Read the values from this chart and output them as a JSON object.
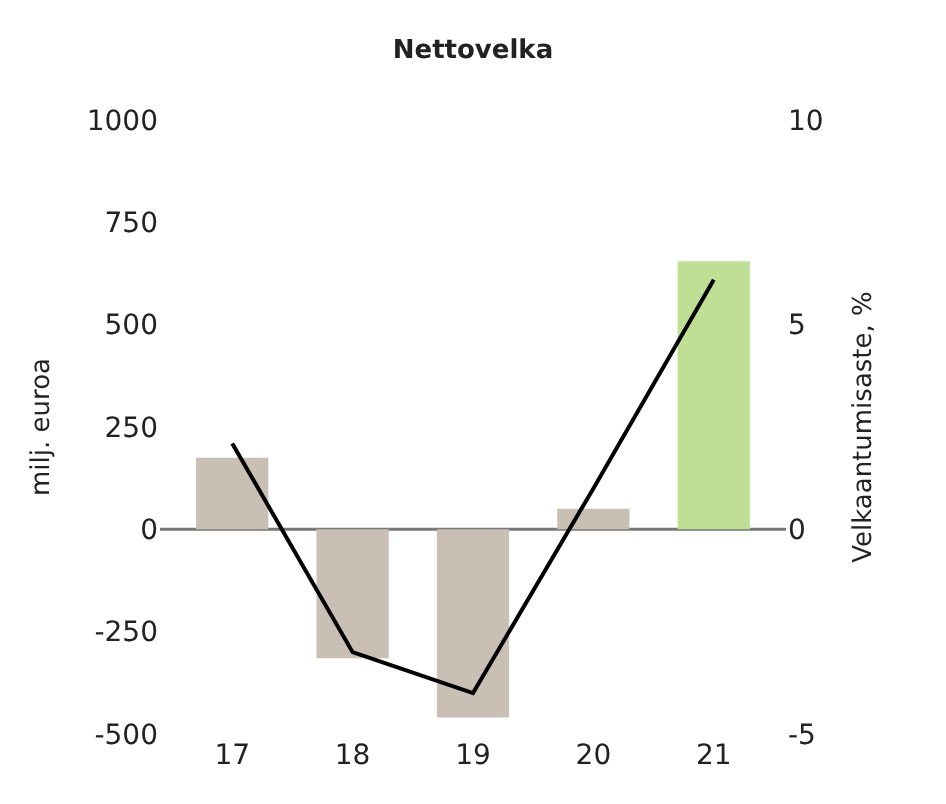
{
  "chart_data": {
    "type": "bar",
    "title": "Nettovelka",
    "ylabel": "milj. euroa",
    "y2label": "Velkaantumisaste, %",
    "categories": [
      "17",
      "18",
      "19",
      "20",
      "21"
    ],
    "series": [
      {
        "colors": [
          "#c9bfb5",
          "#c9bfb5",
          "#c9bfb5",
          "#c9bfb5",
          "#bedf94"
        ],
        "values": [
          175,
          -315,
          -460,
          50,
          655
        ]
      },
      {
        "type": "line",
        "axis": "y2",
        "color": "#000000",
        "values": [
          2.1,
          -3.0,
          -4.0,
          1.0,
          6.1
        ]
      }
    ],
    "ylim": [
      -500,
      1000
    ],
    "yticks": [
      -500,
      -250,
      0,
      250,
      500,
      750,
      1000
    ],
    "y2lim": [
      -5,
      10
    ],
    "y2ticks": [
      -5,
      0,
      5,
      10
    ],
    "ref_lines": [
      {
        "axis": "y",
        "value": 0,
        "color": "#777777",
        "line_style": "solid"
      }
    ],
    "grid": false,
    "marker": "none",
    "line_style": "solid"
  }
}
